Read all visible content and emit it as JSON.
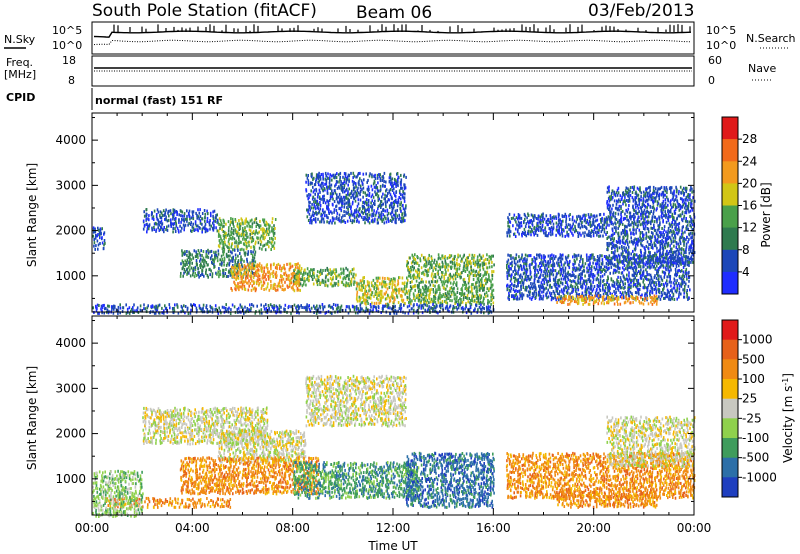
{
  "header": {
    "station": "South Pole Station (fitACF)",
    "beam": "Beam 06",
    "date": "03/Feb/2013"
  },
  "status_panels": {
    "nsky_label": "N.Sky",
    "nsky_top": "10^5",
    "nsky_bottom": "10^0",
    "nsearch_label": "N.Search",
    "nsearch_top": "10^5",
    "nsearch_bottom": "10^0",
    "freq_label_1": "Freq.",
    "freq_label_2": "[MHz]",
    "freq_top": "18",
    "freq_bottom": "8",
    "nave_label": "Nave",
    "nave_top": "60",
    "nave_bottom": "0",
    "cpid_label": "CPID",
    "cpid_text": "normal (fast) 151 RF"
  },
  "chart_data": [
    {
      "type": "heatmap",
      "panel": "power",
      "ylabel": "Slant Range [km]",
      "yticks": [
        "1000",
        "2000",
        "3000",
        "4000"
      ],
      "ylim": [
        200,
        4600
      ],
      "xlim": [
        0,
        24
      ],
      "colorbar_label": "Power [dB]",
      "colorbar_ticks": [
        "4",
        "8",
        "12",
        "16",
        "20",
        "24",
        "28"
      ],
      "colorbar_colors": [
        "#1f2dff",
        "#1c47b8",
        "#2f7a4f",
        "#4aa04a",
        "#d2c616",
        "#f39a1e",
        "#f26a1b",
        "#e01a1a"
      ],
      "scatter_regions": [
        {
          "t0": 0.0,
          "t1": 0.5,
          "r0": 1600,
          "r1": 2100,
          "level": 1
        },
        {
          "t0": 2.0,
          "t1": 5.0,
          "r0": 2000,
          "r1": 2500,
          "level": 1
        },
        {
          "t0": 5.0,
          "t1": 7.3,
          "r0": 1600,
          "r1": 2300,
          "level": 3
        },
        {
          "t0": 3.5,
          "t1": 6.5,
          "r0": 1000,
          "r1": 1600,
          "level": 2
        },
        {
          "t0": 5.5,
          "t1": 8.3,
          "r0": 700,
          "r1": 1300,
          "level": 5
        },
        {
          "t0": 8.0,
          "t1": 10.5,
          "r0": 800,
          "r1": 1200,
          "level": 3
        },
        {
          "t0": 10.5,
          "t1": 12.5,
          "r0": 400,
          "r1": 1000,
          "level": 4
        },
        {
          "t0": 12.5,
          "t1": 16.0,
          "r0": 400,
          "r1": 1500,
          "level": 3
        },
        {
          "t0": 8.5,
          "t1": 12.5,
          "r0": 2200,
          "r1": 3300,
          "level": 1
        },
        {
          "t0": 16.5,
          "t1": 23.8,
          "r0": 500,
          "r1": 1500,
          "level": 1
        },
        {
          "t0": 18.5,
          "t1": 22.5,
          "r0": 400,
          "r1": 600,
          "level": 5
        },
        {
          "t0": 16.5,
          "t1": 20.5,
          "r0": 1900,
          "r1": 2400,
          "level": 1
        },
        {
          "t0": 20.5,
          "t1": 24.0,
          "r0": 1300,
          "r1": 3000,
          "level": 1
        },
        {
          "t0": 0.0,
          "t1": 16.0,
          "r0": 200,
          "r1": 400,
          "level": 1
        }
      ]
    },
    {
      "type": "heatmap",
      "panel": "velocity",
      "ylabel": "Slant Range [km]",
      "yticks": [
        "1000",
        "2000",
        "3000",
        "4000"
      ],
      "ylim": [
        200,
        4600
      ],
      "xlim": [
        0,
        24
      ],
      "xticks": [
        "00:00",
        "04:00",
        "08:00",
        "12:00",
        "16:00",
        "20:00",
        "00:00"
      ],
      "xlabel": "Time UT",
      "colorbar_label": "Velocity [m s^-1]",
      "colorbar_ticks": [
        "1000",
        "500",
        "100",
        "25",
        "-25",
        "-100",
        "-500",
        "-1000"
      ],
      "colorbar_colors": [
        "#1f3fbf",
        "#2c6fa8",
        "#3f9c5c",
        "#8fd14d",
        "#c8c8c0",
        "#f5b800",
        "#f08a12",
        "#e6611a",
        "#e01a1a"
      ],
      "scatter_regions": [
        {
          "t0": 2.0,
          "t1": 7.0,
          "r0": 1800,
          "r1": 2600,
          "level": 4
        },
        {
          "t0": 5.0,
          "t1": 8.5,
          "r0": 1400,
          "r1": 2100,
          "level": 4
        },
        {
          "t0": 3.5,
          "t1": 9.0,
          "r0": 700,
          "r1": 1500,
          "level": 6
        },
        {
          "t0": 0.5,
          "t1": 5.5,
          "r0": 400,
          "r1": 600,
          "level": 6
        },
        {
          "t0": 8.0,
          "t1": 13.0,
          "r0": 600,
          "r1": 1400,
          "level": 2
        },
        {
          "t0": 12.5,
          "t1": 16.0,
          "r0": 400,
          "r1": 1600,
          "level": 1
        },
        {
          "t0": 8.5,
          "t1": 12.5,
          "r0": 2200,
          "r1": 3300,
          "level": 4
        },
        {
          "t0": 18.5,
          "t1": 22.5,
          "r0": 400,
          "r1": 700,
          "level": 6
        },
        {
          "t0": 16.5,
          "t1": 24.0,
          "r0": 600,
          "r1": 1600,
          "level": 6
        },
        {
          "t0": 20.5,
          "t1": 24.0,
          "r0": 1300,
          "r1": 2400,
          "level": 4
        },
        {
          "t0": 0.0,
          "t1": 2.0,
          "r0": 200,
          "r1": 1200,
          "level": 3
        }
      ]
    }
  ]
}
